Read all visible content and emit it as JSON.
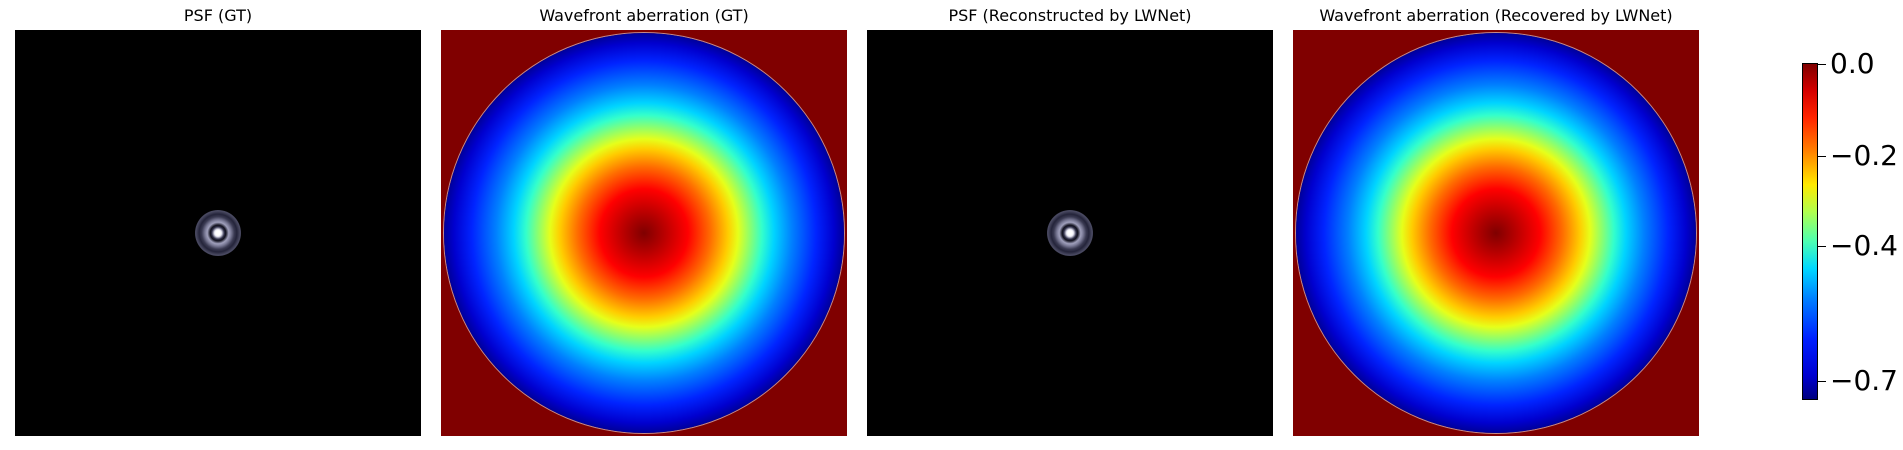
{
  "panels": [
    {
      "title": "PSF (GT)"
    },
    {
      "title": "Wavefront aberration (GT)"
    },
    {
      "title": "PSF (Reconstructed by LWNet)"
    },
    {
      "title": "Wavefront aberration (Recovered by LWNet)"
    }
  ],
  "colorbar": {
    "colormap": "jet",
    "ticks": [
      "0.0",
      "−0.2",
      "−0.4",
      "−0.7"
    ]
  },
  "colors": {
    "background_outside_pupil": "#800000",
    "psf_background": "#000000"
  }
}
